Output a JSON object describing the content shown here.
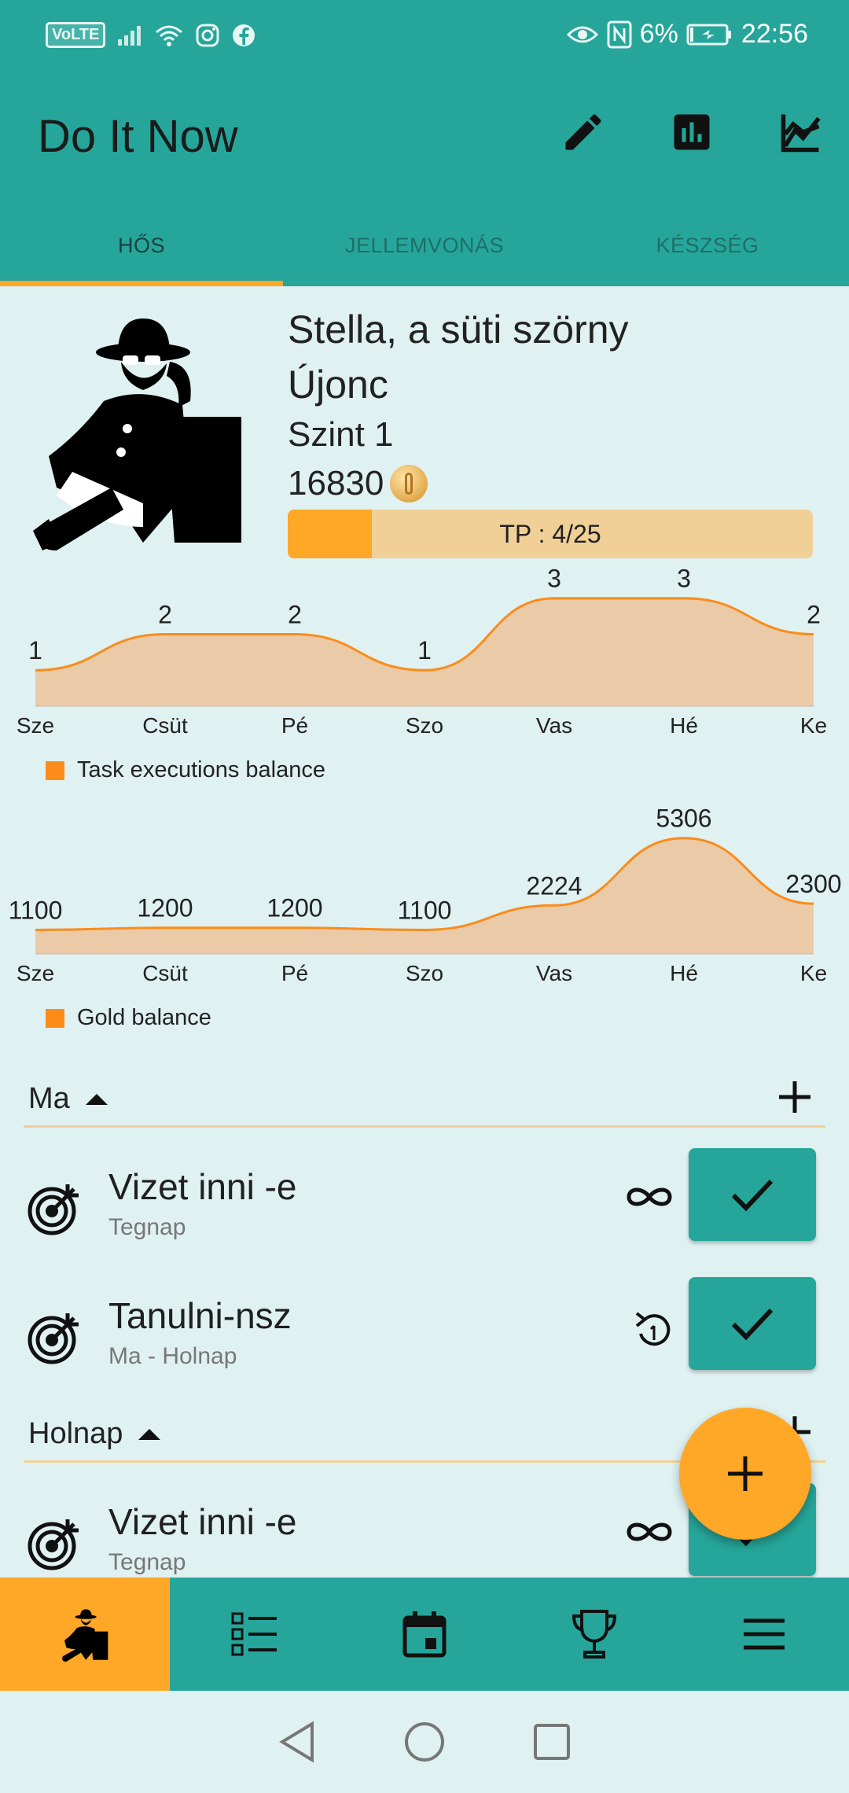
{
  "status_bar": {
    "volte": "VoLTE",
    "battery": "6%",
    "time": "22:56"
  },
  "app": {
    "title": "Do It Now"
  },
  "tabs": [
    {
      "label": "HŐS",
      "active": true
    },
    {
      "label": "JELLEMVONÁS",
      "active": false
    },
    {
      "label": "KÉSZSÉG",
      "active": false
    }
  ],
  "hero": {
    "name": "Stella, a süti szörny",
    "rank": "Újonc",
    "level": "Szint 1",
    "gold": "16830",
    "tp_label": "TP : 4/25",
    "tp_progress": 0.16
  },
  "chart_data": [
    {
      "type": "area",
      "categories": [
        "Sze",
        "Csüt",
        "Pé",
        "Szo",
        "Vas",
        "Hé",
        "Ke"
      ],
      "series": [
        {
          "name": "Task executions balance",
          "values": [
            1,
            2,
            2,
            1,
            3,
            3,
            2
          ]
        }
      ],
      "ylim": [
        0,
        3.3
      ],
      "color": "#fb8c1a",
      "fill": "#ebcaa7",
      "legend": "bottom-left"
    },
    {
      "type": "area",
      "categories": [
        "Sze",
        "Csüt",
        "Pé",
        "Szo",
        "Vas",
        "Hé",
        "Ke"
      ],
      "series": [
        {
          "name": "Gold balance",
          "values": [
            1100,
            1200,
            1200,
            1100,
            2224,
            5306,
            2300
          ]
        }
      ],
      "ylim": [
        0,
        5800
      ],
      "color": "#fb8c1a",
      "fill": "#ebcaa7",
      "legend": "bottom-left"
    }
  ],
  "sections": {
    "today": {
      "label": "Ma"
    },
    "tomorrow": {
      "label": "Holnap"
    }
  },
  "tasks": [
    {
      "name": "Vizet inni -e",
      "sub": "Tegnap",
      "icon": "infinity-icon"
    },
    {
      "name": "Tanulni-nsz",
      "sub": "Ma - Holnap",
      "icon": "repeat-once-icon"
    },
    {
      "name": "Vizet inni -e",
      "sub": "Tegnap",
      "icon": "infinity-icon"
    }
  ],
  "colors": {
    "primary": "#26a69a",
    "accent": "#ffa726",
    "background": "#e0f1f1"
  }
}
